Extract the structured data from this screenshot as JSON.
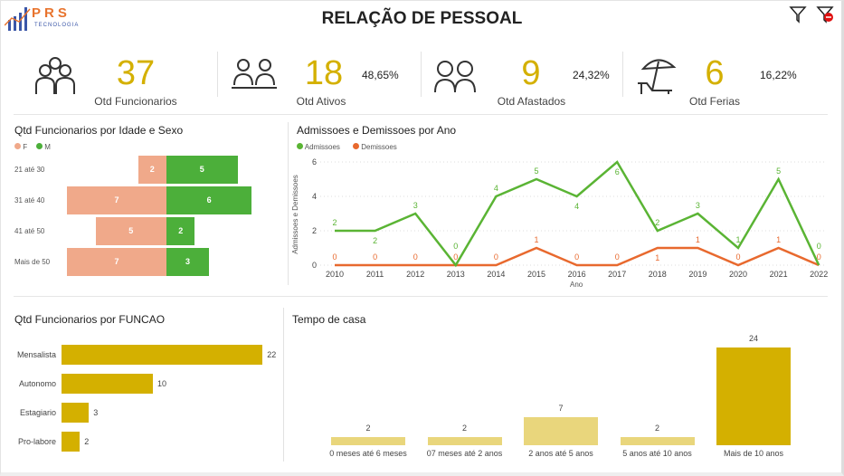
{
  "header": {
    "logo_letters": "PRS",
    "logo_sub": "TECNOLOGIA",
    "title": "RELAÇÃO DE PESSOAL",
    "filter_icon": "filter-icon",
    "clear_filter_icon": "clear-filter-icon"
  },
  "kpis": [
    {
      "value": "37",
      "label": "Otd Funcionarios",
      "icon": "group-icon"
    },
    {
      "value": "18",
      "label": "Otd Ativos",
      "pct": "48,65%",
      "icon": "workers-icon"
    },
    {
      "value": "9",
      "label": "Otd Afastados",
      "pct": "24,32%",
      "icon": "sick-icon"
    },
    {
      "value": "6",
      "label": "Otd Ferias",
      "pct": "16,22%",
      "icon": "beach-icon"
    }
  ],
  "colors": {
    "accent": "#d4b000",
    "female": "#f0a98a",
    "male": "#4caf3a",
    "adm": "#5ab434",
    "dem": "#e8692e",
    "light_bar": "#e9d67c"
  },
  "chart_data": [
    {
      "type": "bar",
      "title": "Qtd Funcionarios por Idade e Sexo",
      "legend": [
        "F",
        "M"
      ],
      "categories": [
        "21 até 30",
        "31 até 40",
        "41 até 50",
        "Mais de 50"
      ],
      "series": [
        {
          "name": "F",
          "values": [
            2,
            7,
            5,
            7
          ]
        },
        {
          "name": "M",
          "values": [
            5,
            6,
            2,
            3
          ]
        }
      ]
    },
    {
      "type": "line",
      "title": "Admissoes e Demissoes por Ano",
      "xlabel": "Ano",
      "ylabel": "Admissoes e Demissoes",
      "ylim": [
        0,
        6
      ],
      "yticks": [
        "0",
        "2",
        "4",
        "6"
      ],
      "x": [
        "2010",
        "2011",
        "2012",
        "2013",
        "2014",
        "2015",
        "2016",
        "2017",
        "2018",
        "2019",
        "2020",
        "2021",
        "2022"
      ],
      "series": [
        {
          "name": "Admissoes",
          "values": [
            2,
            2,
            3,
            0,
            4,
            5,
            4,
            6,
            2,
            3,
            1,
            5,
            0
          ]
        },
        {
          "name": "Demissoes",
          "values": [
            0,
            0,
            0,
            0,
            0,
            1,
            0,
            0,
            1,
            1,
            0,
            1,
            0
          ]
        }
      ]
    },
    {
      "type": "bar",
      "title": "Qtd Funcionarios por FUNCAO",
      "categories": [
        "Mensalista",
        "Autonomo",
        "Estagiario",
        "Pro-labore"
      ],
      "values": [
        22,
        10,
        3,
        2
      ]
    },
    {
      "type": "bar",
      "title": "Tempo de casa",
      "categories": [
        "0 meses até 6 meses",
        "07 meses até 2 anos",
        "2 anos até 5 anos",
        "5 anos até 10 anos",
        "Mais de 10 anos"
      ],
      "values": [
        2,
        2,
        7,
        2,
        24
      ]
    }
  ]
}
